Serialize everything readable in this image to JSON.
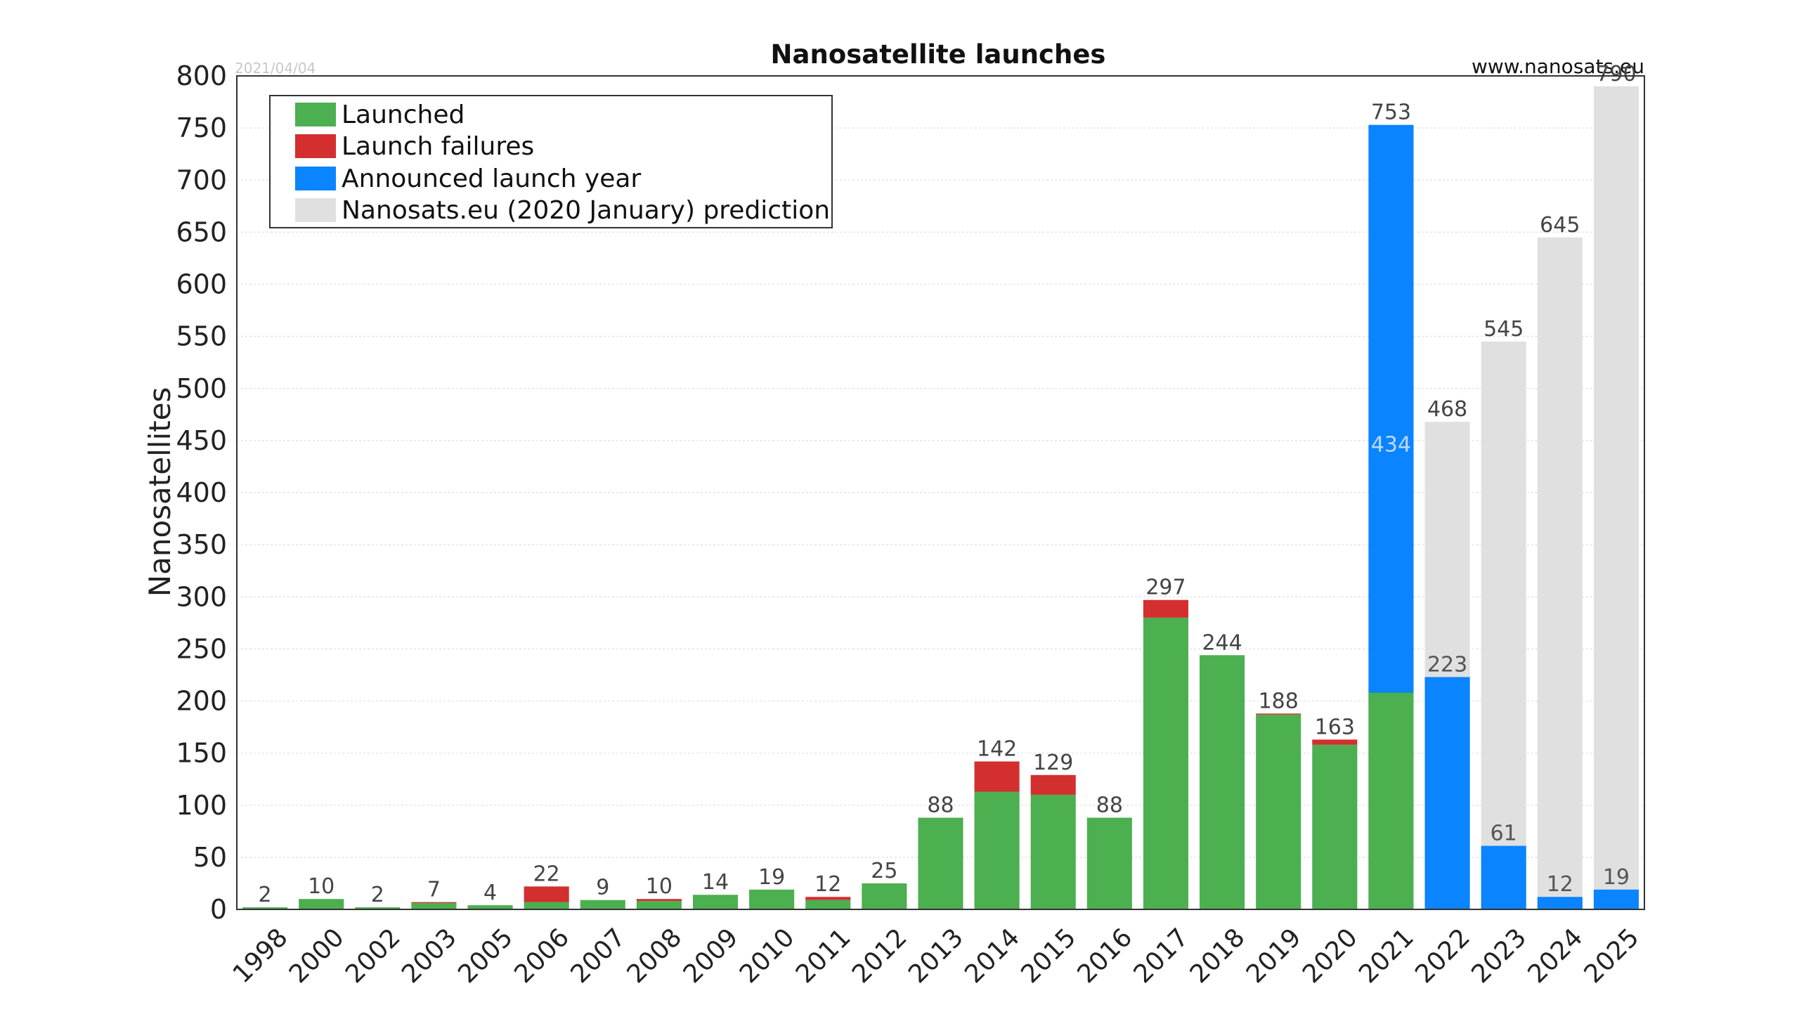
{
  "chart_data": {
    "type": "bar",
    "title": "Nanosatellite launches",
    "date_stamp": "2021/04/04",
    "source": "www.nanosats.eu",
    "ylabel": "Nanosatellites",
    "xlabel": "",
    "ylim": [
      0,
      800
    ],
    "yticks": [
      0,
      50,
      100,
      150,
      200,
      250,
      300,
      350,
      400,
      450,
      500,
      550,
      600,
      650,
      700,
      750,
      800
    ],
    "grid": true,
    "legend_position": "top-left",
    "categories": [
      "1998",
      "2000",
      "2002",
      "2003",
      "2005",
      "2006",
      "2007",
      "2008",
      "2009",
      "2010",
      "2011",
      "2012",
      "2013",
      "2014",
      "2015",
      "2016",
      "2017",
      "2018",
      "2019",
      "2020",
      "2021",
      "2022",
      "2023",
      "2024",
      "2025"
    ],
    "series": [
      {
        "name": "Launched",
        "color": "#4caf50",
        "values": [
          2,
          10,
          2,
          6,
          4,
          7,
          9,
          8,
          14,
          19,
          9,
          25,
          88,
          113,
          110,
          88,
          280,
          244,
          187,
          158,
          208,
          0,
          0,
          0,
          0
        ]
      },
      {
        "name": "Launch failures",
        "color": "#d32f2f",
        "values": [
          0,
          0,
          0,
          1,
          0,
          15,
          0,
          2,
          0,
          0,
          3,
          0,
          0,
          29,
          19,
          0,
          17,
          0,
          1,
          5,
          0,
          0,
          0,
          0,
          0
        ]
      },
      {
        "name": "Announced launch year",
        "color": "#0a84ff",
        "values": [
          0,
          0,
          0,
          0,
          0,
          0,
          0,
          0,
          0,
          0,
          0,
          0,
          0,
          0,
          0,
          0,
          0,
          0,
          0,
          0,
          753,
          223,
          61,
          12,
          19
        ]
      },
      {
        "name": "Nanosats.eu (2020 January) prediction",
        "color": "#e0e0e0",
        "values": [
          0,
          0,
          0,
          0,
          0,
          0,
          0,
          0,
          0,
          0,
          0,
          0,
          0,
          0,
          0,
          0,
          0,
          0,
          0,
          0,
          434,
          468,
          545,
          645,
          790
        ]
      }
    ],
    "total_labels": [
      "2",
      "10",
      "2",
      "7",
      "4",
      "22",
      "9",
      "10",
      "14",
      "19",
      "12",
      "25",
      "88",
      "142",
      "129",
      "88",
      "297",
      "244",
      "188",
      "163",
      "753",
      "468",
      "545",
      "645",
      "790"
    ],
    "inner_labels": [
      {
        "category": "2021",
        "value": 434,
        "text": "434",
        "color": "#bfd8f5"
      },
      {
        "category": "2022",
        "value": 223,
        "text": "223",
        "color": "#555555"
      },
      {
        "category": "2023",
        "value": 61,
        "text": "61",
        "color": "#555555"
      },
      {
        "category": "2024",
        "value": 12,
        "text": "12",
        "color": "#555555"
      },
      {
        "category": "2025",
        "value": 19,
        "text": "19",
        "color": "#555555"
      }
    ]
  }
}
